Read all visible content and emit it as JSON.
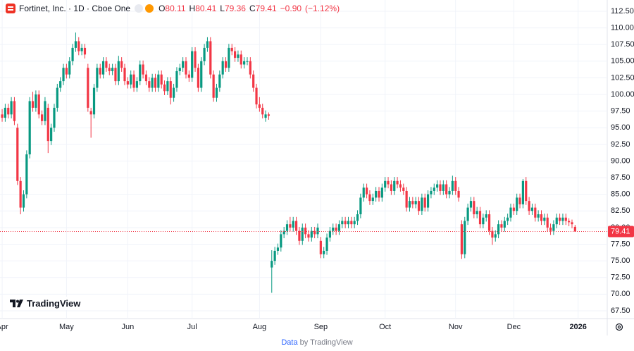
{
  "chart_data": {
    "type": "candlestick",
    "title": "Fortinet, Inc. · 1D · Cboe One",
    "ohlc_labels": [
      "O",
      "H",
      "L",
      "C"
    ],
    "change": {
      "value": -0.9,
      "label": "−0.90"
    },
    "change_pct": {
      "value": -1.12,
      "label": "(−1.12%)"
    },
    "watermark": "TradingView",
    "footer": {
      "link": "Data",
      "text": "by TradingView"
    },
    "up_color": "#089981",
    "down_color": "#f23645",
    "grid": true,
    "last_price_line": true,
    "xlim": [
      -0.7,
      197.5
    ],
    "xticks": [
      {
        "value": 0,
        "label": "Apr"
      },
      {
        "value": 21,
        "label": "May"
      },
      {
        "value": 41,
        "label": "Jun"
      },
      {
        "value": 62,
        "label": "Jul"
      },
      {
        "value": 84,
        "label": "Aug"
      },
      {
        "value": 104,
        "label": "Sep"
      },
      {
        "value": 125,
        "label": "Oct"
      },
      {
        "value": 148,
        "label": "Nov"
      },
      {
        "value": 167,
        "label": "Dec"
      },
      {
        "value": 188,
        "label": "2026"
      }
    ],
    "ylim": [
      66.33,
      114.19
    ],
    "yticks": [
      {
        "value": 67.5,
        "label": "67.50"
      },
      {
        "value": 70,
        "label": "70.00"
      },
      {
        "value": 72.5,
        "label": "72.50"
      },
      {
        "value": 75,
        "label": "75.00"
      },
      {
        "value": 77.5,
        "label": "77.50"
      },
      {
        "value": 80,
        "label": "80.00"
      },
      {
        "value": 82.5,
        "label": "82.50"
      },
      {
        "value": 85,
        "label": "85.00"
      },
      {
        "value": 87.5,
        "label": "87.50"
      },
      {
        "value": 90,
        "label": "90.00"
      },
      {
        "value": 92.5,
        "label": "92.50"
      },
      {
        "value": 95,
        "label": "95.00"
      },
      {
        "value": 97.5,
        "label": "97.50"
      },
      {
        "value": 100,
        "label": "100.00"
      },
      {
        "value": 102.5,
        "label": "102.50"
      },
      {
        "value": 105,
        "label": "105.00"
      },
      {
        "value": 107.5,
        "label": "107.50"
      },
      {
        "value": 110,
        "label": "110.00"
      },
      {
        "value": 112.5,
        "label": "112.50"
      }
    ],
    "candles": [
      [
        97,
        97.8,
        95.9,
        96.5
      ],
      [
        96.5,
        98.6,
        95.9,
        98
      ],
      [
        98,
        98.6,
        96.4,
        97
      ],
      [
        97,
        99.6,
        96.4,
        99
      ],
      [
        99,
        99.6,
        95.4,
        96
      ],
      [
        95,
        95.6,
        86.4,
        87
      ],
      [
        87,
        87.6,
        82,
        83
      ],
      [
        83,
        85.6,
        82.4,
        85
      ],
      [
        85,
        91.6,
        84.4,
        91
      ],
      [
        91,
        99.6,
        90.4,
        99
      ],
      [
        99,
        100.4,
        97.4,
        98
      ],
      [
        98,
        100.6,
        97.4,
        100
      ],
      [
        100,
        100.6,
        96.4,
        97
      ],
      [
        97,
        97.6,
        95.4,
        96
      ],
      [
        96,
        99.6,
        95.4,
        99
      ],
      [
        98,
        98.6,
        91.2,
        93
      ],
      [
        93,
        95.6,
        92.4,
        95
      ],
      [
        95,
        98.6,
        94.4,
        98
      ],
      [
        98,
        101.6,
        97.4,
        101
      ],
      [
        101,
        102.6,
        100.4,
        102
      ],
      [
        102,
        104.6,
        101.4,
        104
      ],
      [
        104,
        104.6,
        102.4,
        103
      ],
      [
        103,
        105.6,
        102.4,
        105
      ],
      [
        105,
        107.6,
        104.4,
        107
      ],
      [
        107,
        109.3,
        106.4,
        108
      ],
      [
        108,
        108.6,
        105.9,
        106.5
      ],
      [
        106.5,
        107.6,
        105.9,
        107
      ],
      [
        107,
        107.6,
        105.4,
        106
      ],
      [
        104,
        104.6,
        97.4,
        98
      ],
      [
        97.5,
        98,
        93.5,
        97
      ],
      [
        97,
        101.6,
        96.4,
        101
      ],
      [
        101,
        104.6,
        100.4,
        104
      ],
      [
        104,
        104.6,
        102.4,
        103
      ],
      [
        103,
        105.6,
        102.4,
        105
      ],
      [
        105,
        105.6,
        103.4,
        104
      ],
      [
        104,
        104.6,
        102.9,
        103.5
      ],
      [
        103.5,
        104.6,
        102.9,
        104
      ],
      [
        104,
        104.6,
        101.4,
        102
      ],
      [
        102,
        105.8,
        101.4,
        105
      ],
      [
        105,
        105.6,
        103.4,
        104
      ],
      [
        104,
        104.6,
        101.4,
        102
      ],
      [
        102,
        102.6,
        100.9,
        101.5
      ],
      [
        101.5,
        103.6,
        100.9,
        103
      ],
      [
        103,
        103.6,
        100.4,
        101
      ],
      [
        101,
        102.6,
        100.4,
        102
      ],
      [
        102,
        105.1,
        101.4,
        104.5
      ],
      [
        104.5,
        105.1,
        102.4,
        103
      ],
      [
        103,
        103.6,
        101.4,
        102
      ],
      [
        102,
        102.6,
        100.4,
        101
      ],
      [
        101,
        103.1,
        100.4,
        102.5
      ],
      [
        102.5,
        103.1,
        100.4,
        101
      ],
      [
        101,
        103.6,
        100.4,
        103
      ],
      [
        103,
        103.6,
        100.9,
        101.5
      ],
      [
        101.5,
        102.1,
        99.9,
        100.5
      ],
      [
        100.5,
        102.6,
        99.9,
        102
      ],
      [
        102,
        102.6,
        98.5,
        99.5
      ],
      [
        99.5,
        101.6,
        98.9,
        101
      ],
      [
        101,
        104.1,
        100.4,
        103.5
      ],
      [
        103.5,
        104.6,
        102.9,
        104
      ],
      [
        104,
        105.6,
        103.4,
        105
      ],
      [
        105,
        105.6,
        102.4,
        103
      ],
      [
        103,
        103.6,
        101.9,
        102.5
      ],
      [
        102.5,
        107.1,
        101.9,
        106.5
      ],
      [
        106.5,
        107.1,
        103.4,
        104
      ],
      [
        104,
        104.6,
        100.4,
        101
      ],
      [
        101,
        105.6,
        100.4,
        105
      ],
      [
        105,
        107.6,
        104.4,
        107
      ],
      [
        107,
        108.6,
        106.4,
        108
      ],
      [
        108,
        108.6,
        102.4,
        103
      ],
      [
        103,
        103.6,
        98.9,
        99.5
      ],
      [
        99.5,
        101.6,
        98.9,
        101
      ],
      [
        101,
        103.6,
        100.4,
        103
      ],
      [
        103,
        105.6,
        102.4,
        105
      ],
      [
        105,
        105.6,
        103.4,
        104
      ],
      [
        104,
        107.6,
        103.4,
        107
      ],
      [
        107,
        107.6,
        105.9,
        106.5
      ],
      [
        106.5,
        107.1,
        104.9,
        105.5
      ],
      [
        105.5,
        106.6,
        104.9,
        106
      ],
      [
        106,
        106.6,
        103.9,
        104.5
      ],
      [
        104.5,
        105.6,
        103.9,
        105
      ],
      [
        105,
        105.6,
        104.4,
        105
      ],
      [
        105,
        105.6,
        102.4,
        103
      ],
      [
        103,
        103.6,
        100.4,
        101
      ],
      [
        101,
        101.6,
        97.9,
        98.5
      ],
      [
        98.5,
        99.6,
        97.4,
        98
      ],
      [
        98,
        98.6,
        96.4,
        97
      ],
      [
        96.5,
        97.6,
        95.9,
        97
      ],
      [
        97,
        97.3,
        96.2,
        96.8
      ],
      [
        74,
        76.6,
        70.2,
        75
      ],
      [
        75,
        77.1,
        74.4,
        76.5
      ],
      [
        76.5,
        77.6,
        75.9,
        77
      ],
      [
        77,
        79.6,
        76.4,
        79
      ],
      [
        79,
        80.1,
        78.4,
        79.5
      ],
      [
        79.5,
        81.1,
        78.9,
        80.5
      ],
      [
        80.5,
        81.6,
        79.4,
        80
      ],
      [
        80,
        81.6,
        79.4,
        81
      ],
      [
        81,
        81.6,
        78.9,
        79.5
      ],
      [
        79.5,
        80.1,
        77.4,
        78
      ],
      [
        78,
        80.6,
        77.4,
        80
      ],
      [
        80,
        80.6,
        78.4,
        79
      ],
      [
        79,
        79.6,
        77.9,
        78.5
      ],
      [
        78.5,
        80.1,
        77.9,
        79.5
      ],
      [
        79.5,
        80.1,
        78.4,
        79
      ],
      [
        79,
        80.6,
        78.4,
        80
      ],
      [
        78,
        78.6,
        75.4,
        76
      ],
      [
        76,
        77.1,
        75.4,
        76.5
      ],
      [
        76.5,
        79.1,
        75.9,
        78.5
      ],
      [
        78.5,
        80.1,
        77.9,
        79.5
      ],
      [
        79.5,
        80.6,
        78.9,
        80
      ],
      [
        80,
        80.6,
        78.9,
        79.5
      ],
      [
        79.5,
        81.1,
        78.9,
        80.5
      ],
      [
        80.5,
        81.6,
        79.9,
        81
      ],
      [
        81,
        81.6,
        79.9,
        80.5
      ],
      [
        80.5,
        81.6,
        79.9,
        81
      ],
      [
        81,
        81.6,
        79.9,
        80.5
      ],
      [
        80.5,
        81.6,
        79.9,
        81
      ],
      [
        81,
        82.6,
        80.4,
        82
      ],
      [
        82,
        85.1,
        81.4,
        84.5
      ],
      [
        84.5,
        86.6,
        83.9,
        86
      ],
      [
        86,
        86.6,
        84.4,
        85
      ],
      [
        85,
        85.6,
        83.4,
        84
      ],
      [
        84,
        85.1,
        83.4,
        84.5
      ],
      [
        84.5,
        86.1,
        83.9,
        85.5
      ],
      [
        85.5,
        86.1,
        83.9,
        84.5
      ],
      [
        84.5,
        86.6,
        83.9,
        86
      ],
      [
        86,
        87.6,
        85.4,
        87
      ],
      [
        87,
        87.6,
        85.9,
        86.5
      ],
      [
        86.5,
        87.1,
        84.9,
        85.5
      ],
      [
        85.5,
        87.6,
        84.9,
        87
      ],
      [
        87,
        87.6,
        85.9,
        86.5
      ],
      [
        86.5,
        87.1,
        85.4,
        86
      ],
      [
        86,
        86.6,
        84.9,
        85.5
      ],
      [
        85.5,
        86.1,
        82.4,
        83
      ],
      [
        83,
        84.6,
        82.4,
        84
      ],
      [
        84,
        84.6,
        82.9,
        83.5
      ],
      [
        83.5,
        84.6,
        82.9,
        84
      ],
      [
        84,
        84.6,
        81.9,
        82.5
      ],
      [
        82.5,
        85.1,
        81.9,
        84.5
      ],
      [
        84.5,
        85.1,
        82.4,
        83
      ],
      [
        83,
        85.6,
        82.4,
        85
      ],
      [
        85,
        86.1,
        84.4,
        85.5
      ],
      [
        85.5,
        86.6,
        84.9,
        86
      ],
      [
        86,
        87.1,
        85.4,
        86.5
      ],
      [
        86.5,
        87.1,
        84.9,
        85.5
      ],
      [
        85.5,
        87.1,
        84.9,
        86.5
      ],
      [
        86.5,
        87.1,
        84.4,
        85
      ],
      [
        85,
        86.1,
        84.4,
        85.5
      ],
      [
        85.5,
        87.8,
        84.9,
        87
      ],
      [
        87,
        87.6,
        84.9,
        85.5
      ],
      [
        85.5,
        86.1,
        83.9,
        84.5
      ],
      [
        80.5,
        81.1,
        75.3,
        76
      ],
      [
        76,
        81.6,
        75.4,
        81
      ],
      [
        81,
        83.6,
        80.4,
        83
      ],
      [
        83,
        84.6,
        82.4,
        84
      ],
      [
        84,
        84.6,
        81.4,
        82
      ],
      [
        82,
        83.1,
        81.4,
        82.5
      ],
      [
        82.5,
        83.1,
        79.9,
        80.5
      ],
      [
        80.5,
        82.1,
        79.9,
        81.5
      ],
      [
        81.5,
        82.6,
        80.9,
        82
      ],
      [
        82,
        82.6,
        78.9,
        79.5
      ],
      [
        79.5,
        80.1,
        77.4,
        78.5
      ],
      [
        78.5,
        79.6,
        77.9,
        79
      ],
      [
        79,
        81.1,
        78.4,
        80.5
      ],
      [
        80.5,
        81.1,
        79.4,
        80
      ],
      [
        80,
        81.6,
        79.4,
        81
      ],
      [
        81,
        82.1,
        80.4,
        81.5
      ],
      [
        81.5,
        83.6,
        80.9,
        83
      ],
      [
        83,
        83.6,
        81.9,
        82.5
      ],
      [
        82.5,
        85.1,
        81.9,
        84.5
      ],
      [
        84.5,
        85.1,
        82.9,
        83.5
      ],
      [
        83.5,
        87.3,
        82.9,
        87
      ],
      [
        87,
        87.6,
        83.4,
        84
      ],
      [
        84,
        84.6,
        81.9,
        82.5
      ],
      [
        82.5,
        83.6,
        81.9,
        83
      ],
      [
        83,
        83.6,
        80.9,
        81.5
      ],
      [
        81.5,
        82.6,
        80.9,
        82
      ],
      [
        82,
        82.6,
        80.4,
        81
      ],
      [
        81,
        82.1,
        80.4,
        81.5
      ],
      [
        81.5,
        82.1,
        79.4,
        80
      ],
      [
        80,
        80.6,
        78.9,
        79.5
      ],
      [
        79.5,
        81.1,
        78.9,
        80.5
      ],
      [
        80.5,
        82.1,
        79.9,
        81.5
      ],
      [
        81.5,
        82.1,
        80.4,
        81
      ],
      [
        81,
        82.1,
        80.4,
        81.5
      ],
      [
        81.5,
        82.1,
        80.4,
        81
      ],
      [
        81,
        81.4,
        80.2,
        80.8
      ],
      [
        80.8,
        81.2,
        79.9,
        80.5
      ],
      [
        80.11,
        80.41,
        79.36,
        79.41
      ]
    ]
  }
}
